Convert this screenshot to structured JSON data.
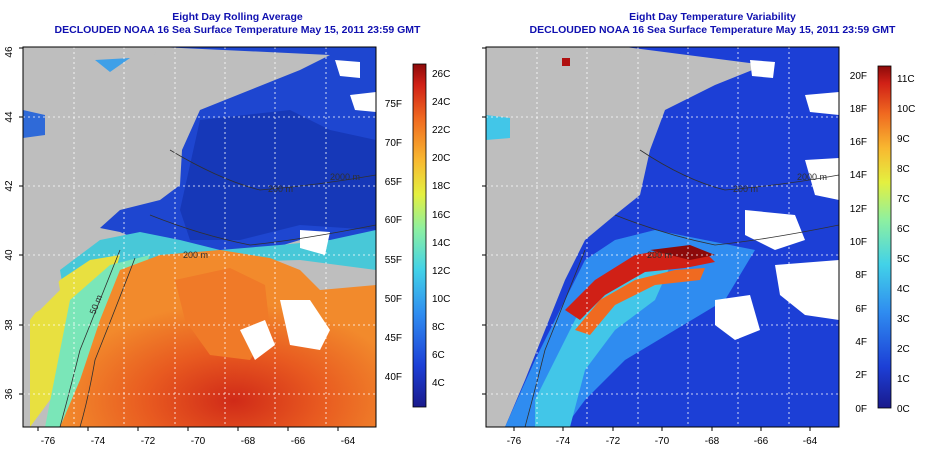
{
  "panels": [
    {
      "title_line1": "Eight Day Rolling Average",
      "title_line2": "DECLOUDED NOAA 16 Sea Surface Temperature May 15, 2011 23:59 GMT",
      "x_ticks": [
        "-76",
        "-74",
        "-72",
        "-70",
        "-68",
        "-66",
        "-64"
      ],
      "y_ticks": [
        "36",
        "38",
        "40",
        "42",
        "44",
        "46"
      ],
      "contour_labels": [
        "2000 m",
        "200 m",
        "200 m",
        "50 m"
      ],
      "colorbar": {
        "fahrenheit": [
          "40F",
          "45F",
          "50F",
          "55F",
          "60F",
          "65F",
          "70F",
          "75F"
        ],
        "celsius": [
          "4C",
          "6C",
          "8C",
          "10C",
          "12C",
          "14C",
          "16C",
          "18C",
          "20C",
          "22C",
          "24C",
          "26C"
        ]
      }
    },
    {
      "title_line1": "Eight Day Temperature Variability",
      "title_line2": "DECLOUDED NOAA 16 Sea Surface Temperature May 15, 2011 23:59 GMT",
      "x_ticks": [
        "-76",
        "-74",
        "-72",
        "-70",
        "-68",
        "-66",
        "-64"
      ],
      "y_ticks": [
        "36",
        "38",
        "40",
        "42",
        "44",
        "46"
      ],
      "contour_labels": [
        "2000 m",
        "200 m",
        "200 m"
      ],
      "colorbar": {
        "fahrenheit": [
          "0F",
          "2F",
          "4F",
          "6F",
          "8F",
          "10F",
          "12F",
          "14F",
          "16F",
          "18F",
          "20F"
        ],
        "celsius": [
          "0C",
          "1C",
          "2C",
          "3C",
          "4C",
          "5C",
          "6C",
          "7C",
          "8C",
          "9C",
          "10C",
          "11C"
        ]
      }
    }
  ],
  "colors": {
    "title": "#1010b0",
    "land": "#bebebe",
    "grid": "#ffffff",
    "clouds": "#ffffff"
  }
}
